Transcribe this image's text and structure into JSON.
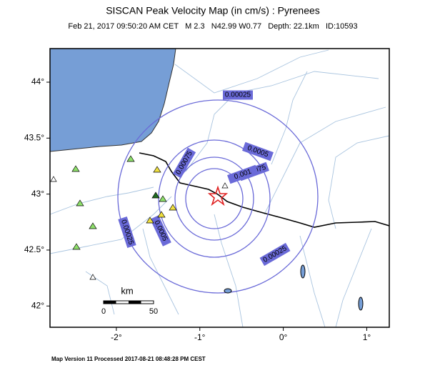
{
  "map": {
    "title": "SISCAN Peak Velocity Map (in cm/s) : Pyrenees",
    "subtitle": "Feb 21, 2017 09:50:20 AM CET   M 2.3   N42.99 W0.77   Depth: 22.1km   ID:10593",
    "xlim": [
      -2.795,
      1.27
    ],
    "ylim": [
      41.81,
      44.3
    ],
    "xticks": [
      {
        "value": -2,
        "label": "-2°"
      },
      {
        "value": -1,
        "label": "-1°"
      },
      {
        "value": 0,
        "label": "0°"
      },
      {
        "value": 1,
        "label": "1°"
      }
    ],
    "yticks": [
      {
        "value": 42,
        "label": "42°"
      },
      {
        "value": 42.5,
        "label": "42.5°"
      },
      {
        "value": 43,
        "label": "43°"
      },
      {
        "value": 43.5,
        "label": "43.5°"
      },
      {
        "value": 44,
        "label": "44°"
      }
    ],
    "contours": [
      0.00025,
      0.0005,
      0.00075,
      0.001
    ],
    "scale_bar": {
      "unit": "km",
      "start": "0",
      "end": "50"
    },
    "footer": "Map Version 11 Processed 2017-08-21 08:48:28 PM CEST"
  }
}
